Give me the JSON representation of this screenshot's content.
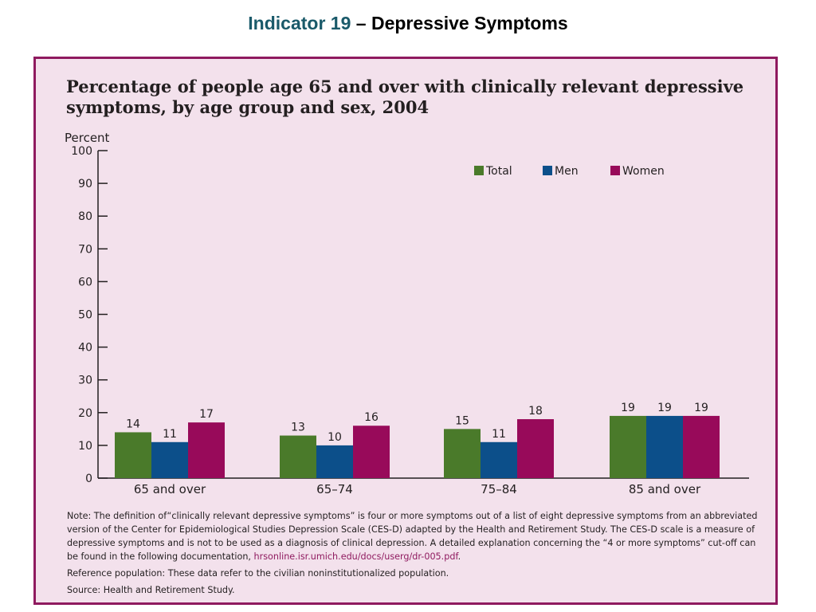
{
  "slide": {
    "title_accent": "Indicator 19",
    "title_rest": " – Depressive Symptoms"
  },
  "notes": {
    "note_prefix": "Note: The definition of“clinically relevant depressive symptoms” is four or more symptoms out of a list of eight depressive symptoms from an abbreviated version of the Center for Epidemiological Studies Depression Scale (CES-D) adapted by the Health and Retirement Study. The CES-D scale is a measure of depressive symptoms and is not to be used as a diagnosis of clinical depression. A detailed explanation concerning the “4 or more symptoms” cut-off can be found in the following documentation, ",
    "note_link": "hrsonline.isr.umich.edu/docs/userg/dr-005.pdf",
    "note_suffix": ".",
    "reference": "Reference population: These data refer to the civilian noninstitutionalized population.",
    "source": "Source: Health and Retirement Study."
  },
  "colors": {
    "panel_background": "#f3e1ec",
    "panel_border": "#8f1a5f"
  },
  "chart_data": {
    "type": "bar",
    "title": "Percentage of people age 65 and over with clinically relevant depressive symptoms, by age group and sex, 2004",
    "ylabel": "Percent",
    "xlabel": "",
    "ylim": [
      0,
      100
    ],
    "yticks": [
      0,
      10,
      20,
      30,
      40,
      50,
      60,
      70,
      80,
      90,
      100
    ],
    "grid": false,
    "legend_position": "top-right",
    "categories": [
      "65 and over",
      "65–74",
      "75–84",
      "85 and over"
    ],
    "series": [
      {
        "name": "Total",
        "color": "#4a7a2a",
        "values": [
          14,
          13,
          15,
          19
        ]
      },
      {
        "name": "Men",
        "color": "#0c4f8a",
        "values": [
          11,
          10,
          11,
          19
        ]
      },
      {
        "name": "Women",
        "color": "#980a5a",
        "values": [
          17,
          16,
          18,
          19
        ]
      }
    ]
  }
}
